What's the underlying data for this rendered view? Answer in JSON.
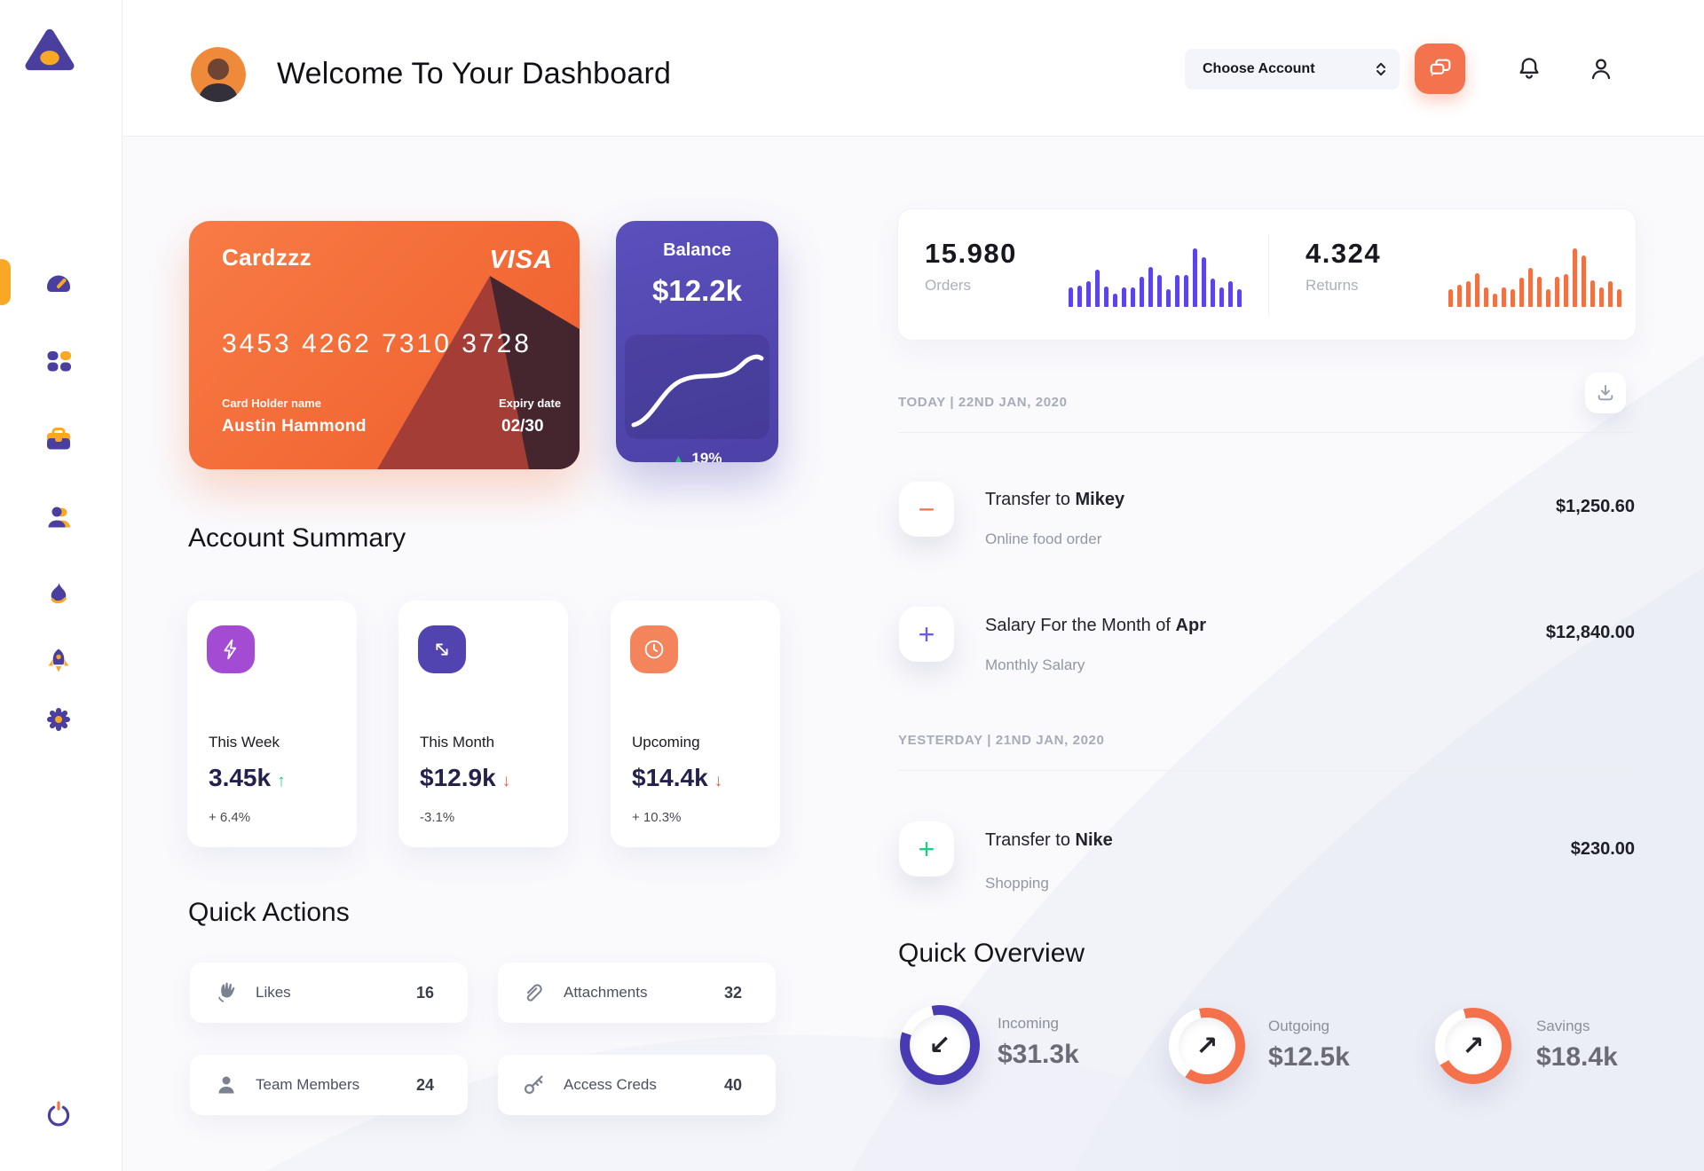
{
  "header": {
    "title": "Welcome To Your Dashboard",
    "account_dropdown_label": "Choose Account",
    "icons": [
      "chat-icon",
      "bell-icon",
      "user-icon"
    ]
  },
  "sidebar": {
    "logo_icon": "triangle-logo",
    "items": [
      {
        "name": "dashboard",
        "icon": "speedometer-icon",
        "active": true
      },
      {
        "name": "apps",
        "icon": "grid-icon",
        "active": false
      },
      {
        "name": "work",
        "icon": "briefcase-icon",
        "active": false
      },
      {
        "name": "team",
        "icon": "person-icon",
        "active": false
      },
      {
        "name": "activity",
        "icon": "flame-icon",
        "active": false
      },
      {
        "name": "launch",
        "icon": "rocket-icon",
        "active": false
      },
      {
        "name": "settings",
        "icon": "gear-icon",
        "active": false
      }
    ],
    "power_icon": "power-icon",
    "accent_purple": "#4A3F9F",
    "accent_orange": "#F9A826"
  },
  "credit_card": {
    "label": "Cardzzz",
    "brand": "VISA",
    "number": "3453 4262 7310 3728",
    "holder_label": "Card Holder name",
    "holder": "Austin Hammond",
    "expiry_label": "Expiry date",
    "expiry": "02/30"
  },
  "balance_card": {
    "title": "Balance",
    "value": "$12.2k",
    "change_glyph": "▲",
    "change": "19%",
    "change_color": "#2BC489"
  },
  "account_summary": {
    "title": "Account Summary",
    "cards": [
      {
        "label": "This Week",
        "value": "3.45k",
        "trend_glyph": "↑",
        "trend_color": "#2BC489",
        "delta": "+ 6.4%",
        "icon": "lightning-icon",
        "icon_bg": "#A44BD3"
      },
      {
        "label": "This Month",
        "value": "$12.9k",
        "trend_glyph": "↓",
        "trend_color": "#EE5C4D",
        "delta": "-3.1%",
        "icon": "diagonal-arrows-icon",
        "icon_bg": "#5143B0"
      },
      {
        "label": "Upcoming",
        "value": "$14.4k",
        "trend_glyph": "↓",
        "trend_color": "#EE5C4D",
        "delta": "+ 10.3%",
        "icon": "clock-icon",
        "icon_bg": "#F4845C"
      }
    ]
  },
  "quick_actions": {
    "title": "Quick Actions",
    "items": [
      {
        "label": "Likes",
        "count": "16",
        "icon": "wave-hand-icon"
      },
      {
        "label": "Attachments",
        "count": "32",
        "icon": "paperclip-icon"
      },
      {
        "label": "Team Members",
        "count": "24",
        "icon": "member-icon"
      },
      {
        "label": "Access Creds",
        "count": "40",
        "icon": "key-icon"
      }
    ]
  },
  "stats": {
    "orders": {
      "value": "15.980",
      "label": "Orders",
      "color": "#5B43F0",
      "bars": [
        33,
        36,
        44,
        63,
        35,
        22,
        33,
        33,
        52,
        68,
        55,
        31,
        54,
        55,
        100,
        85,
        48,
        34,
        44,
        31
      ]
    },
    "returns": {
      "value": "4.324",
      "label": "Returns",
      "color": "#F4703C",
      "bars": [
        30,
        38,
        44,
        58,
        33,
        22,
        34,
        30,
        50,
        66,
        52,
        30,
        52,
        56,
        100,
        88,
        46,
        34,
        44,
        30
      ]
    }
  },
  "transactions": {
    "download_icon": "download-icon",
    "groups": [
      {
        "date": "TODAY | 22ND JAN, 2020",
        "items": [
          {
            "sign": "−",
            "sign_color": "#F4714B",
            "title_prefix": "Transfer to ",
            "title_bold": "Mikey",
            "subtitle": "Online food order",
            "amount": "$1,250.60"
          },
          {
            "sign": "+",
            "sign_color": "#6A5AE8",
            "title_prefix": "Salary For the Month of ",
            "title_bold": "Apr",
            "subtitle": "Monthly Salary",
            "amount": "$12,840.00"
          }
        ]
      },
      {
        "date": "YESTERDAY | 21ND JAN, 2020",
        "items": [
          {
            "sign": "+",
            "sign_color": "#2BC489",
            "title_prefix": "Transfer to ",
            "title_bold": "Nike",
            "subtitle": "Shopping",
            "amount": "$230.00"
          }
        ]
      }
    ]
  },
  "quick_overview": {
    "title": "Quick Overview",
    "items": [
      {
        "label": "Incoming",
        "value": "$31.3k",
        "arrow_glyph": "↙",
        "arrow_icon": "arrow-down-left-icon",
        "ring_color": "#473AB2",
        "gap_start": 289,
        "gap_end": 348
      },
      {
        "label": "Outgoing",
        "value": "$12.5k",
        "arrow_glyph": "↗",
        "arrow_icon": "arrow-up-right-icon",
        "ring_color": "#F4714B",
        "gap_start": 215,
        "gap_end": 348
      },
      {
        "label": "Savings",
        "value": "$18.4k",
        "arrow_glyph": "↗",
        "arrow_icon": "arrow-up-right-icon",
        "ring_color": "#F4714B",
        "gap_start": 240,
        "gap_end": 345
      }
    ]
  }
}
